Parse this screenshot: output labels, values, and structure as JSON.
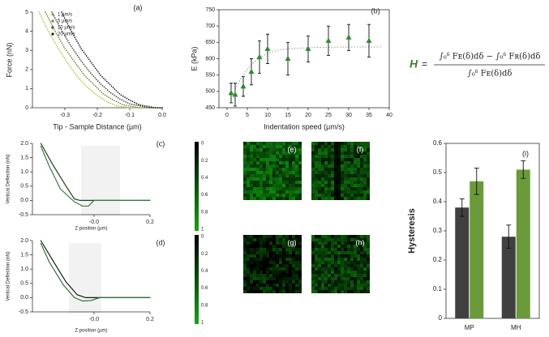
{
  "chart_data": [
    {
      "type": "line",
      "panel": "(a)",
      "ylabel": "Force (nN)",
      "xlabel": "Tip - Sample Distance (µm)",
      "xlim": [
        -0.4,
        0
      ],
      "ylim": [
        0,
        5
      ],
      "xticks": [
        -0.3,
        -0.2,
        -0.1,
        {
          "value": 0,
          "label": "0.0"
        }
      ],
      "yticks": [
        0,
        1,
        2,
        3,
        4,
        5
      ],
      "legend": "upper left",
      "dotted": true,
      "series": [
        {
          "name": "1 µm/s",
          "color": "#a9c94a",
          "x": [
            -0.38,
            -0.35,
            -0.32,
            -0.29,
            -0.26,
            -0.23,
            -0.2,
            -0.17,
            -0.14,
            -0.1,
            0
          ],
          "values": [
            5,
            3.98,
            3.1,
            2.3,
            1.6,
            1.07,
            0.64,
            0.31,
            0.1,
            0,
            0
          ]
        },
        {
          "name": "5 µm/s",
          "color": "#6b8a3a",
          "x": [
            -0.36,
            -0.33,
            -0.3,
            -0.27,
            -0.24,
            -0.21,
            -0.18,
            -0.15,
            -0.12,
            -0.07,
            0
          ],
          "values": [
            5,
            4,
            3.1,
            2.4,
            1.7,
            1.2,
            0.7,
            0.4,
            0.15,
            0,
            0
          ]
        },
        {
          "name": "10 µm/s",
          "color": "#5a3f3f",
          "x": [
            -0.34,
            -0.31,
            -0.28,
            -0.25,
            -0.22,
            -0.19,
            -0.16,
            -0.13,
            -0.1,
            -0.04,
            0
          ],
          "values": [
            5,
            4.05,
            3.2,
            2.45,
            1.8,
            1.25,
            0.8,
            0.45,
            0.2,
            0,
            0
          ]
        },
        {
          "name": "20 µm/s",
          "color": "#1a1a2a",
          "x": [
            -0.31,
            -0.28,
            -0.25,
            -0.22,
            -0.19,
            -0.16,
            -0.13,
            -0.1,
            -0.07,
            -0.02,
            0
          ],
          "values": [
            5,
            4,
            3.1,
            2.4,
            1.7,
            1.2,
            0.7,
            0.4,
            0.15,
            0,
            0
          ]
        }
      ]
    },
    {
      "type": "scatter",
      "panel": "(b)",
      "ylabel": "E (kPa)",
      "xlabel": "Indentation speed (µm/s)",
      "xlim": [
        -2,
        40
      ],
      "ylim": [
        450,
        750
      ],
      "xticks": [
        0,
        5,
        10,
        15,
        20,
        25,
        30,
        35,
        40
      ],
      "yticks": [
        450,
        500,
        550,
        600,
        650,
        700,
        750
      ],
      "color": "#2e8b2e",
      "marker": "triangle",
      "x": [
        1,
        2,
        4,
        6,
        8,
        10,
        15,
        20,
        25,
        30,
        35
      ],
      "values": [
        495,
        490,
        515,
        560,
        605,
        630,
        600,
        630,
        655,
        665,
        655
      ],
      "errors": [
        30,
        35,
        30,
        40,
        50,
        45,
        50,
        40,
        45,
        40,
        50
      ]
    },
    {
      "type": "line",
      "panel": "(c)",
      "ylabel": "Vertical Deflection (nN)",
      "xlabel": "Z position (µm)",
      "xlim": [
        -0.22,
        0.2
      ],
      "ylim": [
        -0.5,
        2
      ],
      "xticks": [
        {
          "value": 0,
          "label": "-0.0"
        },
        0.2
      ],
      "yticks": [
        -0.5,
        {
          "value": 0,
          "label": "0.0"
        },
        0.5,
        {
          "value": 1,
          "label": "1.0"
        },
        1.5,
        {
          "value": 2,
          "label": "2.0"
        }
      ],
      "series": [
        {
          "color": "#1f3f1f",
          "x": [
            -0.19,
            -0.15,
            -0.1,
            -0.07,
            -0.05,
            0.2
          ],
          "values": [
            2,
            1.3,
            0.5,
            0.05,
            0,
            0
          ]
        },
        {
          "color": "#3a7a3a",
          "x": [
            -0.19,
            -0.16,
            -0.12,
            -0.07,
            -0.04,
            -0.02,
            0,
            0.2
          ],
          "values": [
            1.9,
            1.2,
            0.4,
            -0.05,
            -0.2,
            -0.2,
            0,
            0
          ]
        }
      ]
    },
    {
      "type": "line",
      "panel": "(d)",
      "ylabel": "Vertical Deflection (nN)",
      "xlabel": "Z position (µm)",
      "xlim": [
        -0.22,
        0.2
      ],
      "ylim": [
        -0.5,
        2
      ],
      "xticks": [
        {
          "value": 0,
          "label": "-0.0"
        },
        0.2
      ],
      "yticks": [
        -0.5,
        {
          "value": 0,
          "label": "0.0"
        },
        0.5,
        {
          "value": 1,
          "label": "1.0"
        },
        1.5,
        {
          "value": 2,
          "label": "2.0"
        }
      ],
      "series": [
        {
          "color": "#1a1a1a",
          "x": [
            -0.19,
            -0.15,
            -0.1,
            -0.06,
            -0.03,
            0.2
          ],
          "values": [
            2,
            1.35,
            0.55,
            0.1,
            0,
            0
          ]
        },
        {
          "color": "#2f6f2f",
          "x": [
            -0.19,
            -0.16,
            -0.11,
            -0.07,
            -0.04,
            -0.01,
            0.02,
            0.2
          ],
          "values": [
            1.9,
            1.25,
            0.45,
            0,
            -0.12,
            -0.1,
            0,
            0
          ]
        }
      ]
    },
    {
      "type": "bar",
      "panel": "(i)",
      "ylabel": "Hysteresis",
      "categories": [
        "MP",
        "MH"
      ],
      "ylim": [
        0,
        0.6
      ],
      "yticks": [
        0,
        0.1,
        0.2,
        0.3,
        0.4,
        0.5,
        0.6
      ],
      "series": [
        {
          "color": "#404040",
          "values": [
            0.38,
            0.28
          ],
          "errors": [
            0.03,
            0.04
          ]
        },
        {
          "color": "#6a9a3a",
          "values": [
            0.47,
            0.51
          ],
          "errors": [
            0.045,
            0.03
          ]
        }
      ]
    }
  ],
  "equation": {
    "lhs": "H",
    "eq": "=",
    "numerator": "∫₀ᵟ Fᴇ(δ)dδ − ∫₀ᵟ Fʀ(δ)dδ",
    "denominator": "∫₀ᵟ Fᴇ(δ)dδ"
  },
  "maps": {
    "panels": [
      "(e)",
      "(f)",
      "(g)",
      "(h)"
    ],
    "colorbars": [
      {
        "ticks": [
          "0",
          "0.2",
          "0.4",
          "0.6",
          "0.8",
          "1"
        ]
      },
      {
        "ticks": [
          "0",
          "0.2",
          "0.4",
          "0.6",
          "0.8",
          "1"
        ]
      }
    ]
  }
}
